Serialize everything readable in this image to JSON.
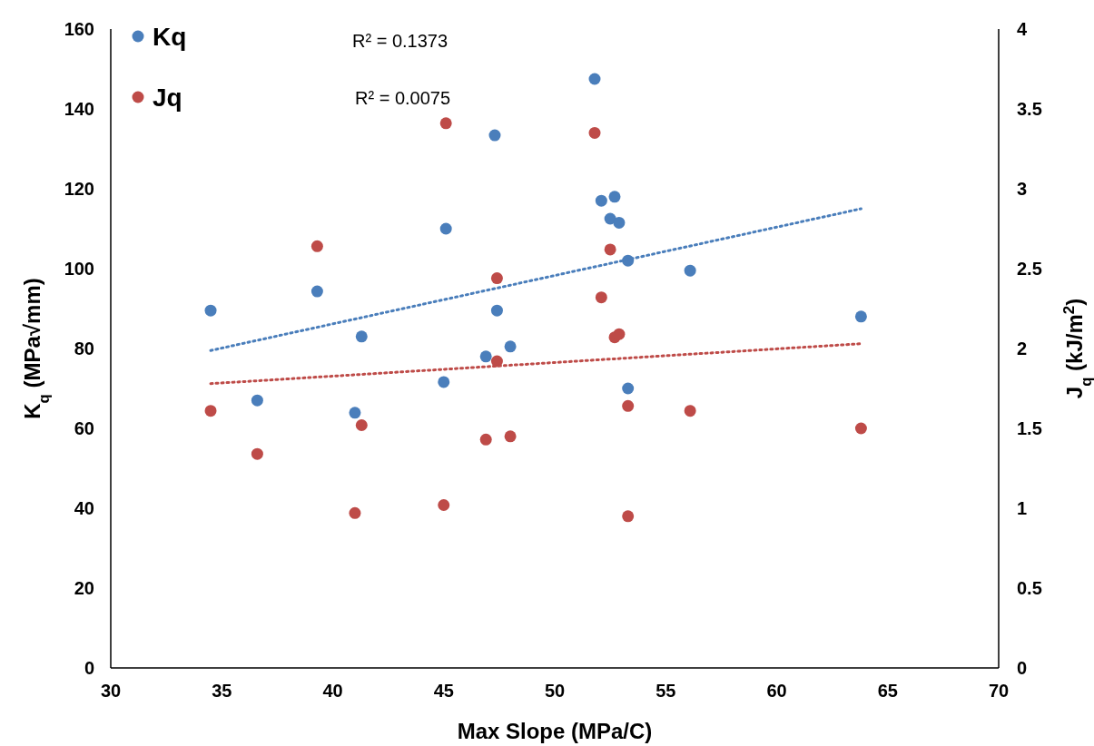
{
  "chart_data": {
    "type": "scatter",
    "xlabel": "Max Slope (MPa/C)",
    "ylabel": "K$_{q}$ (MPa√mm)",
    "y2label": "J$_{q}$ (kJ/m$^{2}$)",
    "xlim": [
      30,
      70
    ],
    "xticks": [
      30,
      35,
      40,
      45,
      50,
      55,
      60,
      65,
      70
    ],
    "ylim": [
      0,
      160
    ],
    "yticks": [
      0,
      20,
      40,
      60,
      80,
      100,
      120,
      140,
      160
    ],
    "y2lim": [
      0,
      4
    ],
    "y2ticks": [
      0,
      0.5,
      1,
      1.5,
      2,
      2.5,
      3,
      3.5,
      4
    ],
    "legend": "top left",
    "grid": false,
    "marker": "circle",
    "annotations": [
      "R² = 0.1373",
      "R² = 0.0075"
    ],
    "series": [
      {
        "name": "Kq",
        "color": "#4a7ebb",
        "x": [
          34.5,
          36.6,
          39.3,
          41.0,
          41.3,
          45.0,
          45.1,
          47.3,
          47.4,
          46.9,
          48.0,
          51.8,
          52.1,
          52.5,
          52.7,
          52.9,
          53.3,
          53.3,
          56.1,
          63.8
        ],
        "values": [
          89.5,
          67,
          94.3,
          63.9,
          83,
          71.6,
          110,
          133.4,
          89.5,
          78,
          80.5,
          147.5,
          117,
          112.5,
          118,
          111.5,
          102,
          70,
          99.5,
          88
        ]
      },
      {
        "name": "Jq",
        "axis": "y2",
        "color": "#be4b48",
        "x": [
          34.5,
          36.6,
          39.3,
          41.0,
          41.3,
          45.0,
          45.1,
          47.4,
          47.4,
          46.9,
          48.0,
          51.8,
          52.1,
          52.5,
          52.7,
          52.9,
          53.3,
          53.3,
          56.1,
          63.8
        ],
        "values": [
          1.61,
          1.34,
          2.64,
          0.97,
          1.52,
          1.02,
          3.41,
          2.44,
          1.92,
          1.43,
          1.45,
          3.35,
          2.32,
          2.62,
          2.07,
          2.09,
          1.64,
          0.95,
          1.61,
          1.5
        ]
      },
      {
        "type": "line",
        "line_style": "dotted",
        "marker": "none",
        "color": "#4a7ebb",
        "x": [
          34.5,
          63.8
        ],
        "values": [
          79.5,
          115
        ]
      },
      {
        "type": "line",
        "line_style": "dotted",
        "marker": "none",
        "axis": "y2",
        "color": "#be4b48",
        "x": [
          34.5,
          63.8
        ],
        "values": [
          1.78,
          2.03
        ]
      }
    ]
  }
}
